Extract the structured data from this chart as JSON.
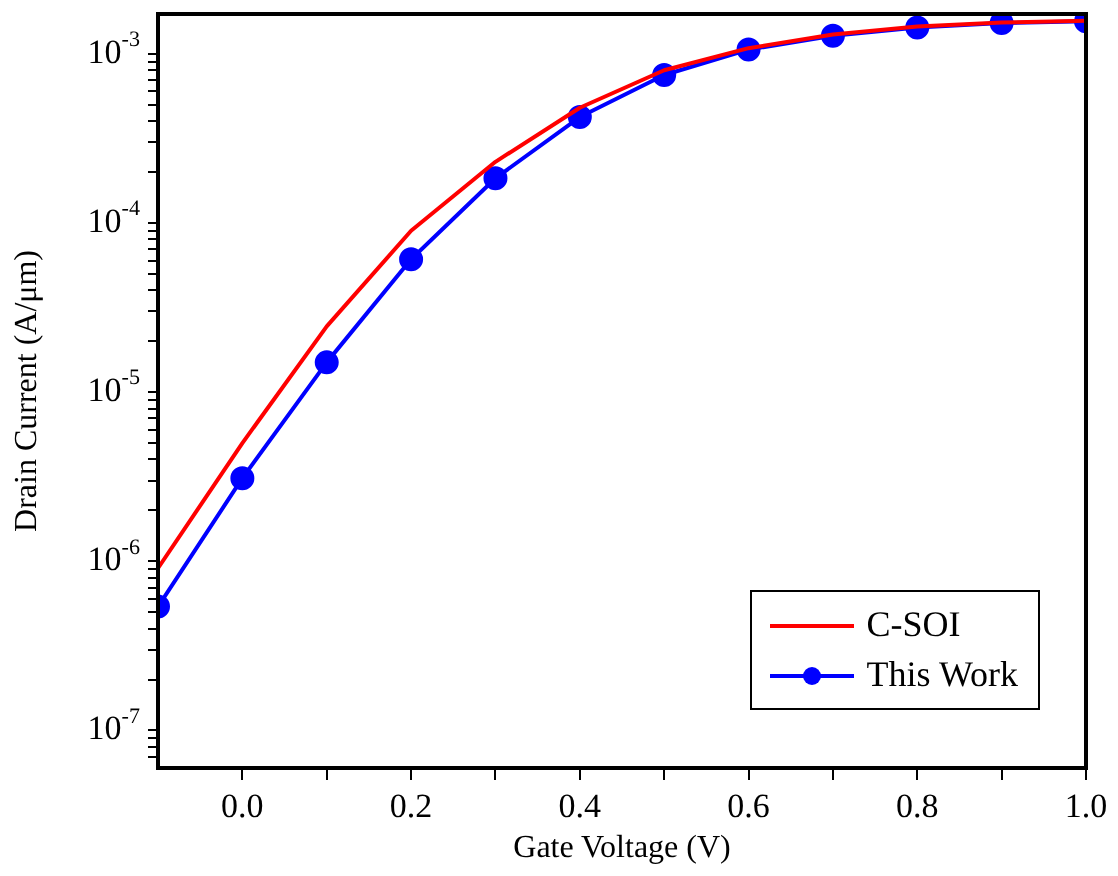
{
  "chart_data": {
    "type": "line",
    "xlabel": "Gate Voltage (V)",
    "ylabel": "Drain Current (A/μm)",
    "x": [
      -0.1,
      0.0,
      0.1,
      0.2,
      0.3,
      0.4,
      0.5,
      0.6,
      0.7,
      0.8,
      0.9,
      1.0
    ],
    "series": [
      {
        "name": "C-SOI",
        "color": "#ff0000",
        "marker": "none",
        "values": [
          9.1e-07,
          5e-06,
          2.45e-05,
          9e-05,
          0.00023,
          0.00048,
          0.0008,
          0.00108,
          0.0013,
          0.00145,
          0.00153,
          0.00157
        ]
      },
      {
        "name": "This Work",
        "color": "#0000ff",
        "marker": "circle",
        "values": [
          5.4e-07,
          3.1e-06,
          1.5e-05,
          6.1e-05,
          0.000184,
          0.000423,
          0.00075,
          0.00106,
          0.00128,
          0.00143,
          0.00152,
          0.00156
        ]
      }
    ],
    "xlim": [
      -0.1,
      1.0
    ],
    "xticks": [
      {
        "value": 0.0,
        "label": "0.0"
      },
      {
        "value": 0.1,
        "label": null
      },
      {
        "value": 0.2,
        "label": "0.2"
      },
      {
        "value": 0.3,
        "label": null
      },
      {
        "value": 0.4,
        "label": "0.4"
      },
      {
        "value": 0.5,
        "label": null
      },
      {
        "value": 0.6,
        "label": "0.6"
      },
      {
        "value": 0.7,
        "label": null
      },
      {
        "value": 0.8,
        "label": "0.8"
      },
      {
        "value": 0.9,
        "label": null
      },
      {
        "value": 1.0,
        "label": "1.0"
      }
    ],
    "ylim": [
      6e-08,
      0.00172
    ],
    "log": true,
    "yticks": [
      {
        "value": 7e-08,
        "label": null
      },
      {
        "value": 8e-08,
        "label": null
      },
      {
        "value": 9e-08,
        "label": null
      },
      {
        "value": 1e-07,
        "label": "10$^{-7}$"
      },
      {
        "value": 2e-07,
        "label": null
      },
      {
        "value": 3e-07,
        "label": null
      },
      {
        "value": 4e-07,
        "label": null
      },
      {
        "value": 5e-07,
        "label": null
      },
      {
        "value": 6e-07,
        "label": null
      },
      {
        "value": 7e-07,
        "label": null
      },
      {
        "value": 8e-07,
        "label": null
      },
      {
        "value": 9e-07,
        "label": null
      },
      {
        "value": 1e-06,
        "label": "10$^{-6}$"
      },
      {
        "value": 2e-06,
        "label": null
      },
      {
        "value": 3e-06,
        "label": null
      },
      {
        "value": 4e-06,
        "label": null
      },
      {
        "value": 5e-06,
        "label": null
      },
      {
        "value": 6e-06,
        "label": null
      },
      {
        "value": 7e-06,
        "label": null
      },
      {
        "value": 8e-06,
        "label": null
      },
      {
        "value": 9e-06,
        "label": null
      },
      {
        "value": 1e-05,
        "label": "10$^{-5}$"
      },
      {
        "value": 2e-05,
        "label": null
      },
      {
        "value": 3e-05,
        "label": null
      },
      {
        "value": 4e-05,
        "label": null
      },
      {
        "value": 5e-05,
        "label": null
      },
      {
        "value": 6e-05,
        "label": null
      },
      {
        "value": 7e-05,
        "label": null
      },
      {
        "value": 8e-05,
        "label": null
      },
      {
        "value": 9e-05,
        "label": null
      },
      {
        "value": 0.0001,
        "label": "10$^{-4}$"
      },
      {
        "value": 0.0002,
        "label": null
      },
      {
        "value": 0.0003,
        "label": null
      },
      {
        "value": 0.0004,
        "label": null
      },
      {
        "value": 0.0005,
        "label": null
      },
      {
        "value": 0.0006,
        "label": null
      },
      {
        "value": 0.0007,
        "label": null
      },
      {
        "value": 0.0008,
        "label": null
      },
      {
        "value": 0.0009,
        "label": null
      },
      {
        "value": 0.001,
        "label": "10$^{-3}$"
      }
    ],
    "grid": false,
    "legend": "bottom right",
    "line_style": "solid"
  }
}
